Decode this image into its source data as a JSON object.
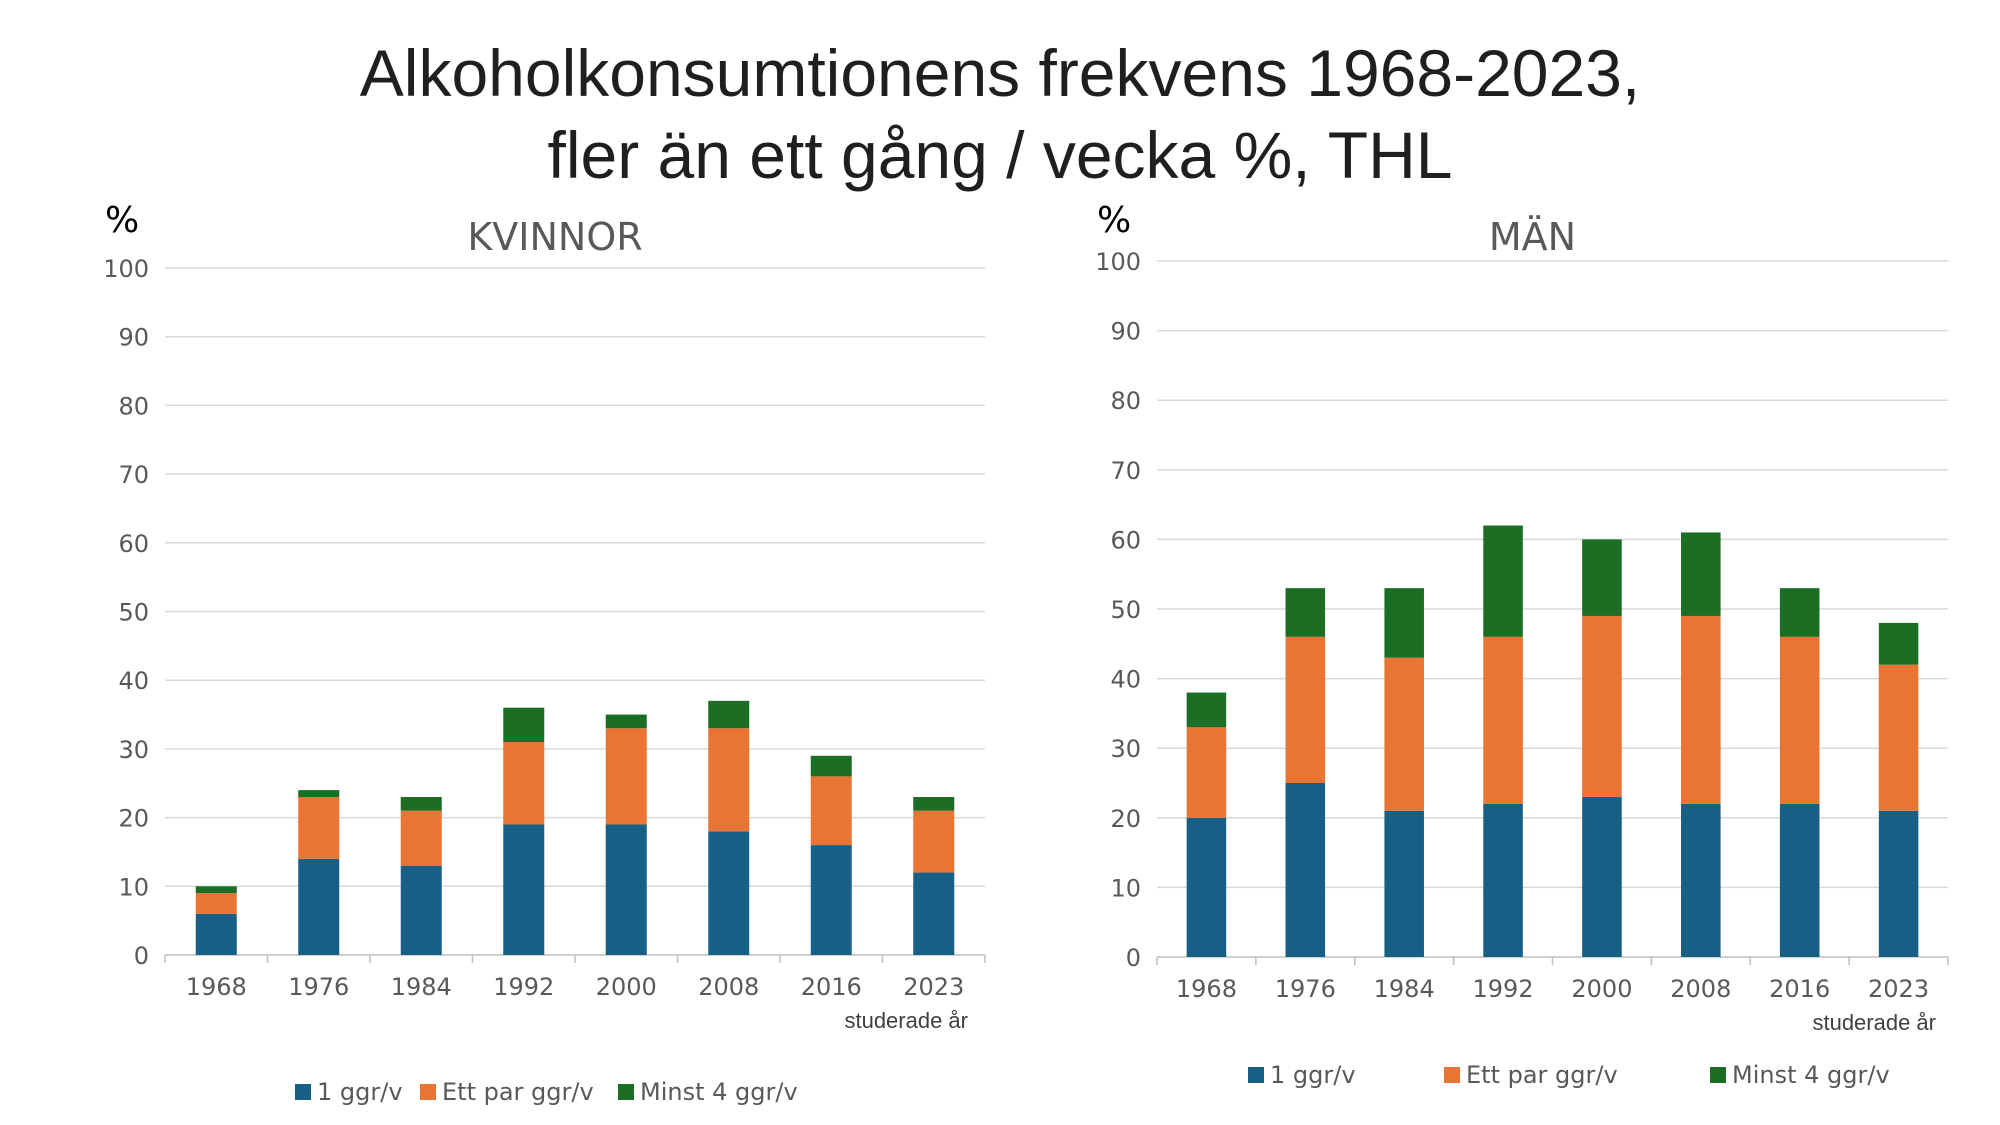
{
  "title_line1": "Alkoholkonsumtionens frekvens 1968-2023,",
  "title_line2": "fler än ett gång / vecka %, THL",
  "colors": {
    "s1": "#175F85",
    "s2": "#E97434",
    "s3": "#1C6E25",
    "grid": "#d9d9d9",
    "axis": "#bfbfbf"
  },
  "chart_data": [
    {
      "type": "bar",
      "stacked": true,
      "title": "KVINNOR",
      "ylabel": "%",
      "xlabel": "studerade år",
      "ylim": [
        0,
        100
      ],
      "yticks": [
        0,
        10,
        20,
        30,
        40,
        50,
        60,
        70,
        80,
        90,
        100
      ],
      "categories": [
        "1968",
        "1976",
        "1984",
        "1992",
        "2000",
        "2008",
        "2016",
        "2023"
      ],
      "series": [
        {
          "name": "1 ggr/v",
          "values": [
            6,
            14,
            13,
            19,
            19,
            18,
            16,
            12
          ]
        },
        {
          "name": "Ett par ggr/v",
          "values": [
            3,
            9,
            8,
            12,
            14,
            15,
            10,
            9
          ]
        },
        {
          "name": "Minst 4 ggr/v",
          "values": [
            1,
            1,
            2,
            5,
            2,
            4,
            3,
            2
          ]
        }
      ],
      "legend": "bottom",
      "grid": true
    },
    {
      "type": "bar",
      "stacked": true,
      "title": "MÄN",
      "ylabel": "%",
      "xlabel": "studerade år",
      "ylim": [
        0,
        100
      ],
      "yticks": [
        0,
        10,
        20,
        30,
        40,
        50,
        60,
        70,
        80,
        90,
        100
      ],
      "categories": [
        "1968",
        "1976",
        "1984",
        "1992",
        "2000",
        "2008",
        "2016",
        "2023"
      ],
      "series": [
        {
          "name": "1 ggr/v",
          "values": [
            20,
            25,
            21,
            22,
            23,
            22,
            22,
            21
          ]
        },
        {
          "name": "Ett par ggr/v",
          "values": [
            13,
            21,
            22,
            24,
            26,
            27,
            24,
            21
          ]
        },
        {
          "name": "Minst 4 ggr/v",
          "values": [
            5,
            7,
            10,
            16,
            11,
            12,
            7,
            6
          ]
        }
      ],
      "legend": "bottom",
      "grid": true
    }
  ]
}
